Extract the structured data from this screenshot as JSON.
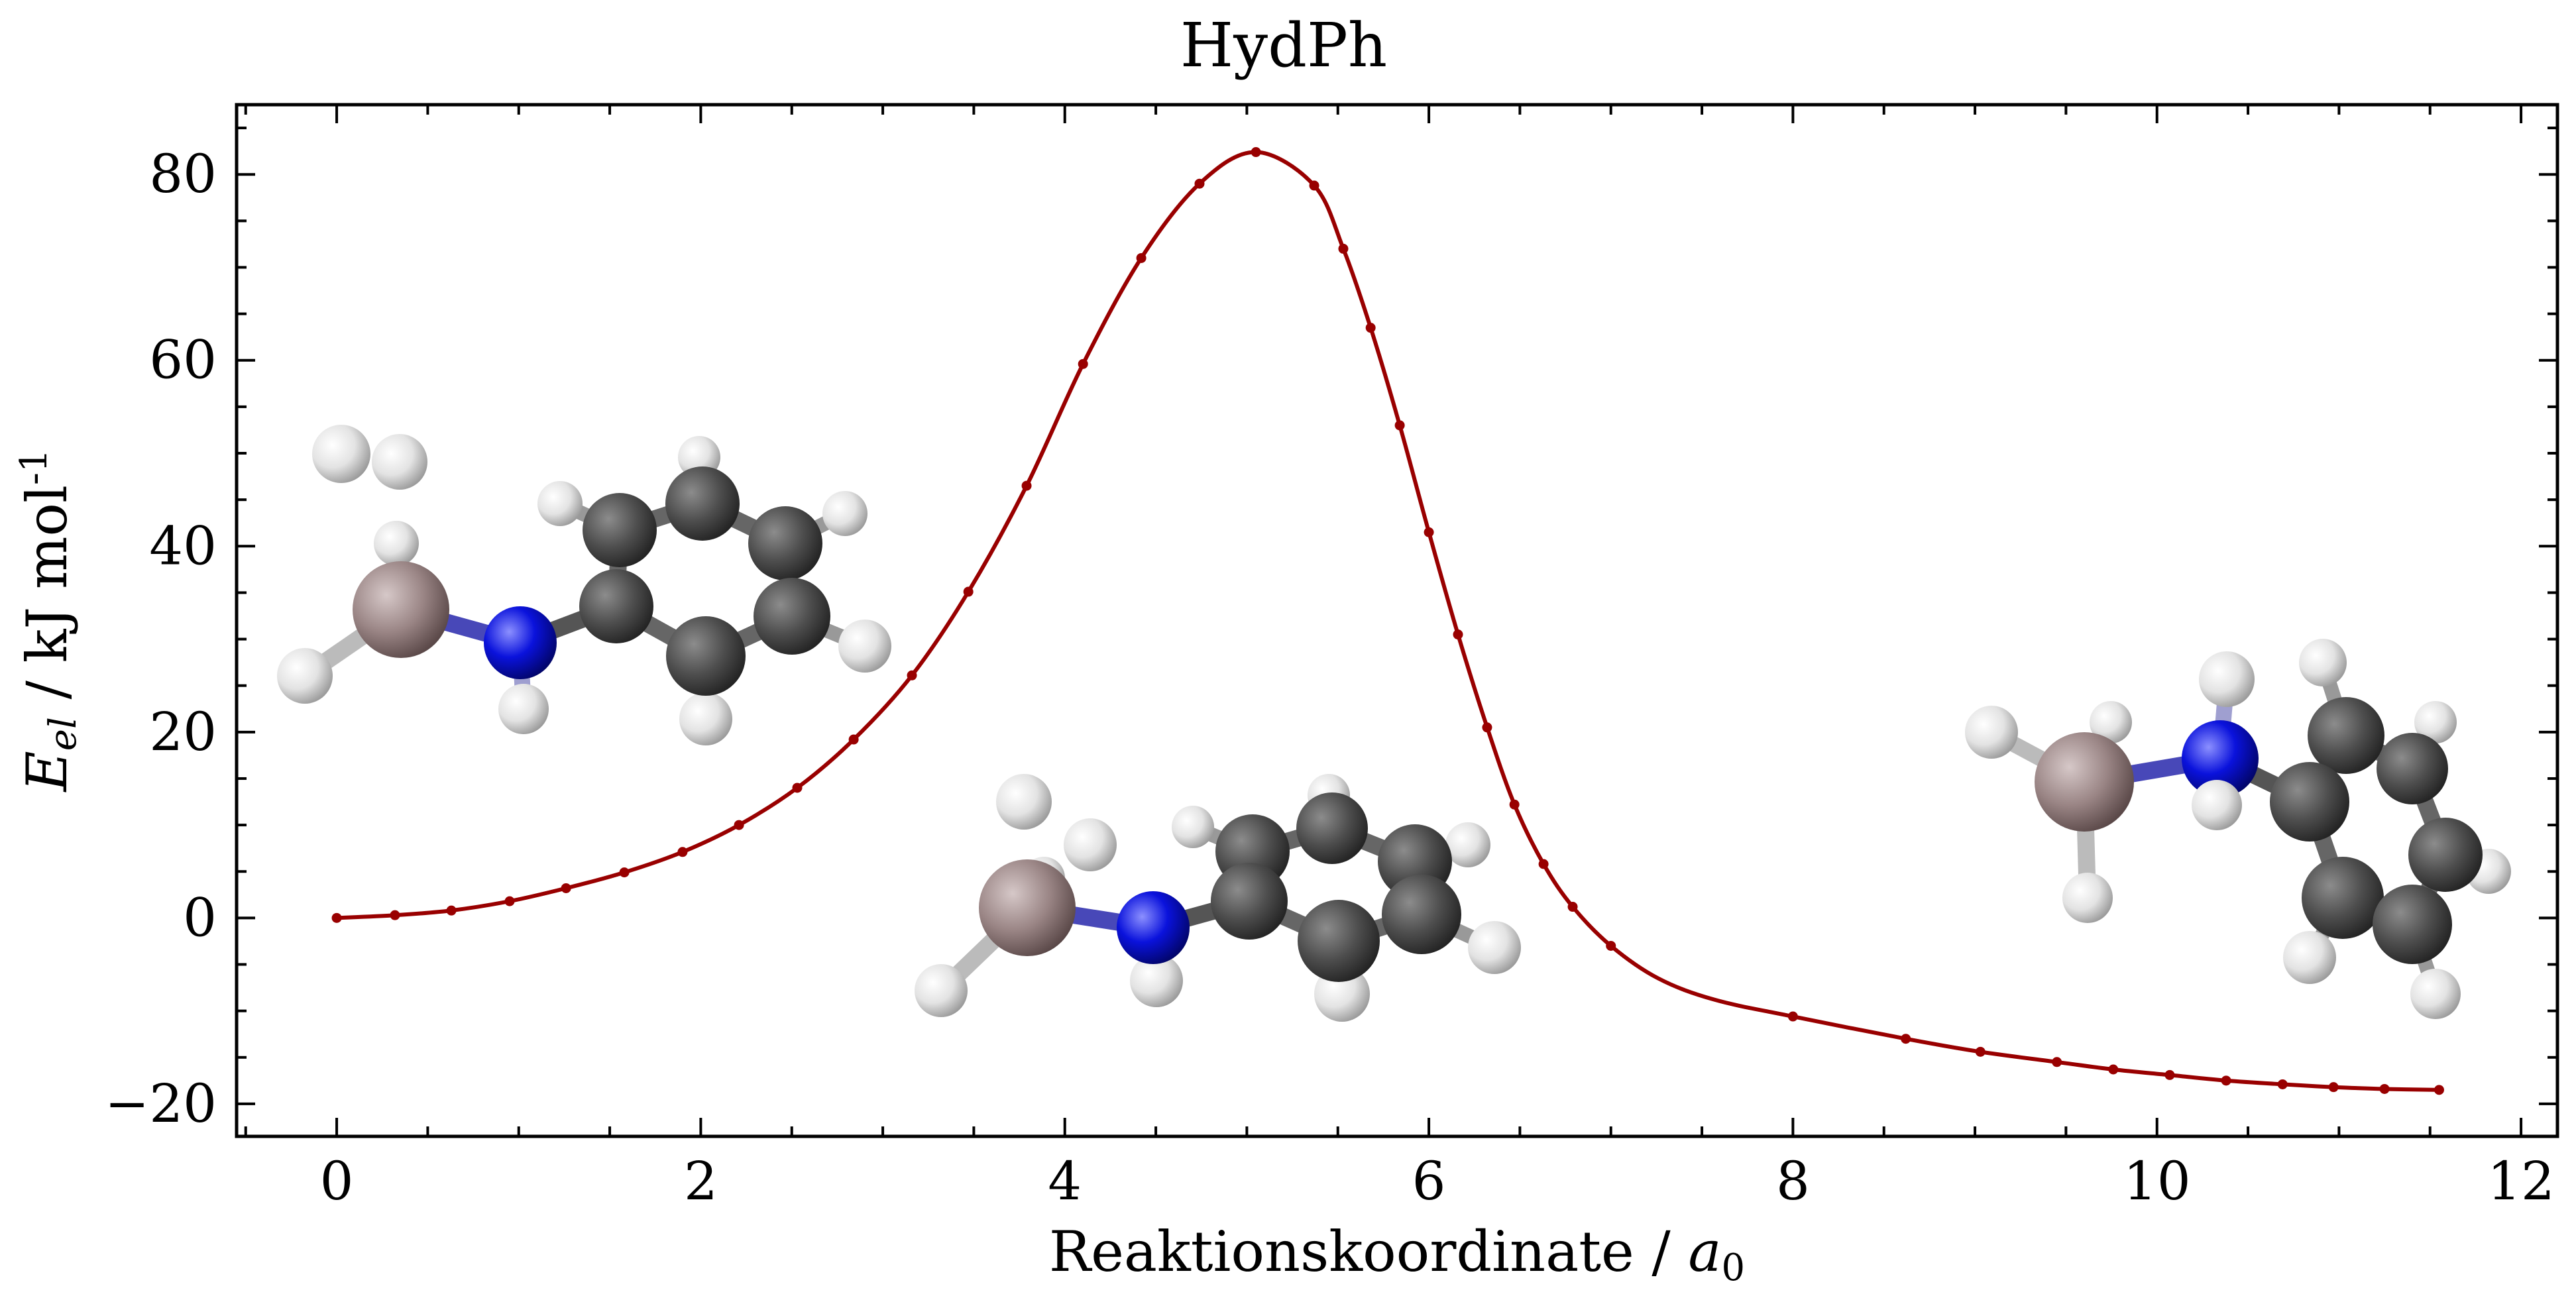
{
  "chart_data": {
    "type": "line",
    "title": "HydPh",
    "xlabel": "Reaktionskoordinate / a0",
    "xlabel_text": "Reaktionskoordinate / ",
    "xlabel_symbol": "a",
    "xlabel_subscript": "0",
    "ylabel_symbol": "E",
    "ylabel_subscript": "el",
    "ylabel_unit": " / kJ mol",
    "ylabel_superscript": "-1",
    "xlim": [
      -0.55,
      12.2
    ],
    "ylim": [
      -23.5,
      87.5
    ],
    "xticks": [
      0,
      2,
      4,
      6,
      8,
      10,
      12
    ],
    "xtick_labels": [
      "0",
      "2",
      "4",
      "6",
      "8",
      "10",
      "12"
    ],
    "yticks": [
      -20,
      0,
      20,
      40,
      60,
      80
    ],
    "ytick_labels": [
      "−20",
      "0",
      "20",
      "40",
      "60",
      "80"
    ],
    "grid": false,
    "line_color": "#990000",
    "series": [
      {
        "x": [
          0.0,
          0.32,
          0.63,
          0.95,
          1.26,
          1.58,
          1.9,
          2.21,
          2.53,
          2.84,
          3.16,
          3.47,
          3.79,
          4.1,
          4.42,
          4.74,
          5.05,
          5.37,
          5.53,
          5.68,
          5.84,
          6.0,
          6.16,
          6.32,
          6.47,
          6.63,
          6.79,
          7.0,
          7.26,
          7.57,
          8.0,
          8.62,
          9.03,
          9.45,
          9.76,
          10.07,
          10.38,
          10.69,
          10.97,
          11.25,
          11.55
        ],
        "y": [
          0.0,
          0.3,
          0.8,
          1.8,
          3.2,
          4.9,
          7.1,
          10.0,
          14.0,
          19.2,
          26.1,
          35.1,
          46.5,
          59.6,
          71.0,
          79.0,
          82.4,
          78.8,
          72.0,
          63.5,
          53.0,
          41.5,
          30.5,
          20.5,
          12.2,
          5.8,
          1.2,
          -3.0,
          -6.5,
          -8.8,
          -10.6,
          -13.0,
          -14.4,
          -15.5,
          -16.3,
          -16.9,
          -17.5,
          -17.9,
          -18.2,
          -18.4,
          -18.5
        ]
      }
    ],
    "markers_x": [
      0.0,
      0.32,
      0.63,
      0.95,
      1.26,
      1.58,
      1.9,
      2.21,
      2.53,
      2.84,
      3.16,
      3.47,
      3.79,
      4.1,
      4.42,
      4.74,
      5.05,
      5.37,
      5.53,
      5.68,
      5.84,
      6.0,
      6.16,
      6.32,
      6.47,
      6.63,
      6.79,
      7.0,
      8.0,
      8.62,
      9.03,
      9.45,
      9.76,
      10.07,
      10.38,
      10.69,
      10.97,
      11.25,
      11.55
    ],
    "markers_y": [
      0.0,
      0.3,
      0.8,
      1.8,
      3.2,
      4.9,
      7.1,
      10.0,
      14.0,
      19.2,
      26.1,
      35.1,
      46.5,
      59.6,
      71.0,
      79.0,
      82.4,
      78.8,
      72.0,
      63.5,
      53.0,
      41.5,
      30.5,
      20.5,
      12.2,
      5.8,
      1.2,
      -3.0,
      -10.6,
      -13.0,
      -14.4,
      -15.5,
      -16.3,
      -16.9,
      -17.5,
      -17.9,
      -18.2,
      -18.4,
      -18.5
    ]
  },
  "molecule_colors": {
    "hydrogen": "#e6e6e6",
    "carbon": "#505050",
    "nitrogen": "#0a10d8",
    "metal": "#9a8585"
  }
}
